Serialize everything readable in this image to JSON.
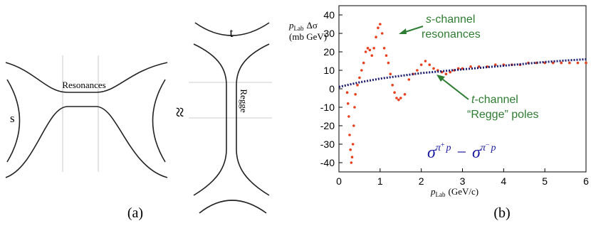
{
  "diagram": {
    "left_label": "s",
    "middle_label": "Resonances",
    "approx": "≈",
    "top_label": "t",
    "vertical_label": "Regge",
    "panel_label": "(a)"
  },
  "chart_data": {
    "type": "scatter",
    "panel_label": "(b)",
    "ylabel": {
      "symbol": "p",
      "sub": "Lab",
      "rest": "Δσ",
      "unit": "(mb GeV)"
    },
    "xlabel": {
      "symbol": "p",
      "sub": "Lab",
      "unit": "(GeV/c)"
    },
    "xlim": [
      0,
      6
    ],
    "xticks": [
      0,
      1,
      2,
      3,
      4,
      5,
      6
    ],
    "ylim": [
      -45,
      45
    ],
    "yticks": [
      -40,
      -30,
      -20,
      -10,
      0,
      10,
      20,
      30,
      40
    ],
    "series": [
      {
        "color": "#e8401c",
        "x": [
          0.2,
          0.22,
          0.24,
          0.26,
          0.28,
          0.3,
          0.32,
          0.34,
          0.36,
          0.38,
          0.4,
          0.45,
          0.5,
          0.55,
          0.6,
          0.65,
          0.7,
          0.75,
          0.8,
          0.85,
          0.9,
          0.95,
          1.0,
          1.05,
          1.1,
          1.15,
          1.2,
          1.25,
          1.3,
          1.35,
          1.4,
          1.45,
          1.5,
          1.6,
          1.7,
          1.8,
          1.9,
          2.0,
          2.1,
          2.2,
          2.3,
          2.4,
          2.5,
          2.6,
          2.7,
          2.8,
          2.9,
          3.0,
          3.2,
          3.4,
          3.6,
          3.8,
          4.0,
          4.2,
          4.4,
          4.6,
          4.8,
          5.0,
          5.2,
          5.4,
          5.6,
          5.8,
          6.0
        ],
        "values": [
          -2,
          -8,
          -15,
          -25,
          -33,
          -40,
          -37,
          -30,
          -20,
          -10,
          -3,
          2,
          6,
          10,
          14,
          20,
          22,
          21,
          18,
          22,
          28,
          33,
          35,
          30,
          22,
          18,
          14,
          8,
          2,
          -2,
          -5,
          -6,
          -5,
          -3,
          5,
          8,
          10,
          13,
          15,
          13,
          11,
          10,
          9,
          8,
          9,
          10,
          11,
          11,
          12,
          12,
          12,
          13,
          13,
          13,
          13,
          14,
          14,
          14,
          14,
          14,
          14,
          14,
          14
        ]
      },
      {
        "color": "#1a1a6e",
        "style": "dotted",
        "x": [
          0,
          0.5,
          1,
          1.5,
          2,
          2.5,
          3,
          3.5,
          4,
          4.5,
          5,
          5.5,
          6
        ],
        "values": [
          1,
          3.5,
          5.5,
          7,
          8.5,
          9.5,
          10.5,
          11.5,
          12.5,
          13.5,
          14.5,
          15.3,
          16
        ]
      }
    ],
    "annotations": {
      "s_channel": {
        "italic": "s",
        "rest": "-channel",
        "line2": "resonances"
      },
      "t_channel": {
        "italic": "t",
        "rest": "-channel",
        "line2": "“Regge” poles"
      },
      "color": "#2e7d32"
    },
    "formula": {
      "sigma": "σ",
      "pi": "π",
      "plus": "+",
      "p": "p",
      "minus": "−",
      "color": "#1a1aa0"
    }
  }
}
